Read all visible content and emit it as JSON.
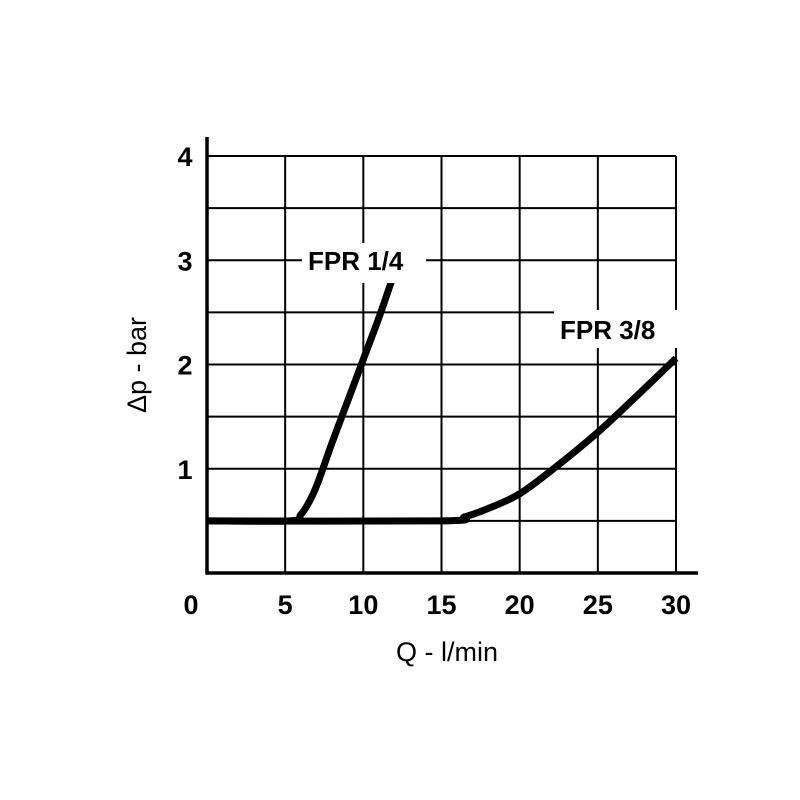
{
  "chart_data": {
    "type": "line",
    "title": "",
    "xlabel": "Q - l/min",
    "ylabel": "Δp - bar",
    "xlim": [
      0,
      30
    ],
    "ylim": [
      0,
      4
    ],
    "x_ticks": [
      "0",
      "5",
      "10",
      "15",
      "20",
      "25",
      "30"
    ],
    "y_ticks": [
      "1",
      "2",
      "3",
      "4"
    ],
    "grid": true,
    "colors": {
      "line": "#000000",
      "grid": "#000000",
      "background": "#ffffff"
    },
    "series": [
      {
        "name": "FPR 1/4",
        "points": [
          [
            0,
            0.5
          ],
          [
            5.3,
            0.5
          ],
          [
            6.0,
            0.56
          ],
          [
            6.6,
            0.7
          ],
          [
            7.1,
            0.87
          ],
          [
            8,
            1.25
          ],
          [
            9,
            1.65
          ],
          [
            10,
            2.05
          ],
          [
            11,
            2.45
          ],
          [
            11.8,
            2.8
          ]
        ]
      },
      {
        "name": "FPR 3/8",
        "points": [
          [
            0,
            0.5
          ],
          [
            15,
            0.5
          ],
          [
            16.5,
            0.54
          ],
          [
            18,
            0.62
          ],
          [
            20,
            0.76
          ],
          [
            22.5,
            1.04
          ],
          [
            25,
            1.35
          ],
          [
            27.5,
            1.7
          ],
          [
            30,
            2.06
          ]
        ]
      }
    ]
  }
}
